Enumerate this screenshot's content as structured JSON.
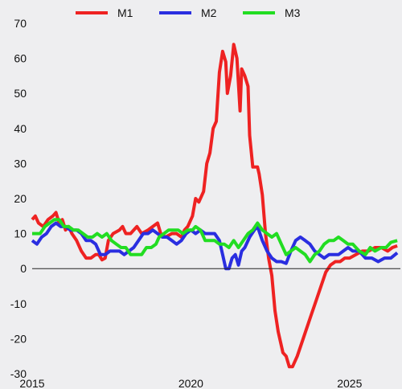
{
  "chart_data": {
    "type": "line",
    "title": "",
    "xlabel": "",
    "ylabel": "",
    "xlim": [
      2015,
      2026.6
    ],
    "ylim": [
      -30,
      70
    ],
    "yticks": [
      "70",
      "60",
      "50",
      "40",
      "30",
      "20",
      "10",
      "0",
      "-10",
      "-20",
      "-30"
    ],
    "xticks": [
      "2015",
      "2020",
      "2025"
    ],
    "zero_line": true,
    "legend_position": "top",
    "series": [
      {
        "name": "M1",
        "color": "#ee2222",
        "points": [
          [
            2015.0,
            14
          ],
          [
            2015.1,
            15
          ],
          [
            2015.2,
            13
          ],
          [
            2015.35,
            12
          ],
          [
            2015.5,
            14
          ],
          [
            2015.65,
            15
          ],
          [
            2015.75,
            16
          ],
          [
            2015.85,
            13
          ],
          [
            2015.95,
            14
          ],
          [
            2016.05,
            11
          ],
          [
            2016.15,
            12
          ],
          [
            2016.25,
            10
          ],
          [
            2016.4,
            8
          ],
          [
            2016.55,
            5
          ],
          [
            2016.7,
            3
          ],
          [
            2016.85,
            3
          ],
          [
            2017.0,
            4
          ],
          [
            2017.1,
            4
          ],
          [
            2017.2,
            2.5
          ],
          [
            2017.3,
            3
          ],
          [
            2017.4,
            8
          ],
          [
            2017.55,
            10
          ],
          [
            2017.75,
            11
          ],
          [
            2017.85,
            12
          ],
          [
            2017.95,
            10
          ],
          [
            2018.1,
            10
          ],
          [
            2018.3,
            12
          ],
          [
            2018.45,
            10
          ],
          [
            2018.65,
            11
          ],
          [
            2018.8,
            12
          ],
          [
            2018.95,
            13
          ],
          [
            2019.05,
            10
          ],
          [
            2019.2,
            9
          ],
          [
            2019.4,
            10
          ],
          [
            2019.55,
            10
          ],
          [
            2019.7,
            9
          ],
          [
            2019.8,
            11
          ],
          [
            2019.9,
            12
          ],
          [
            2020.05,
            15
          ],
          [
            2020.15,
            20
          ],
          [
            2020.25,
            19
          ],
          [
            2020.4,
            22
          ],
          [
            2020.5,
            30
          ],
          [
            2020.6,
            33
          ],
          [
            2020.7,
            40
          ],
          [
            2020.8,
            42
          ],
          [
            2020.9,
            56
          ],
          [
            2021.0,
            62
          ],
          [
            2021.1,
            59
          ],
          [
            2021.15,
            50
          ],
          [
            2021.25,
            55
          ],
          [
            2021.35,
            64
          ],
          [
            2021.45,
            60
          ],
          [
            2021.55,
            45
          ],
          [
            2021.6,
            57
          ],
          [
            2021.7,
            55
          ],
          [
            2021.8,
            52
          ],
          [
            2021.85,
            38
          ],
          [
            2021.95,
            29
          ],
          [
            2022.1,
            29
          ],
          [
            2022.15,
            27
          ],
          [
            2022.25,
            21
          ],
          [
            2022.35,
            10
          ],
          [
            2022.45,
            3
          ],
          [
            2022.55,
            -2
          ],
          [
            2022.65,
            -12
          ],
          [
            2022.75,
            -18
          ],
          [
            2022.9,
            -24
          ],
          [
            2023.0,
            -25
          ],
          [
            2023.1,
            -28
          ],
          [
            2023.2,
            -28
          ],
          [
            2023.35,
            -25
          ],
          [
            2023.5,
            -21
          ],
          [
            2023.65,
            -17
          ],
          [
            2023.8,
            -13
          ],
          [
            2023.95,
            -9
          ],
          [
            2024.1,
            -5
          ],
          [
            2024.25,
            -1
          ],
          [
            2024.4,
            1
          ],
          [
            2024.55,
            2
          ],
          [
            2024.7,
            2
          ],
          [
            2024.85,
            3
          ],
          [
            2025.0,
            3
          ],
          [
            2025.2,
            4
          ],
          [
            2025.4,
            5
          ],
          [
            2025.6,
            5
          ],
          [
            2025.8,
            6
          ],
          [
            2026.0,
            6
          ],
          [
            2026.2,
            5
          ],
          [
            2026.35,
            6
          ],
          [
            2026.5,
            6.5
          ]
        ]
      },
      {
        "name": "M2",
        "color": "#2a2ee0",
        "points": [
          [
            2015.0,
            8
          ],
          [
            2015.15,
            7
          ],
          [
            2015.3,
            9
          ],
          [
            2015.45,
            10
          ],
          [
            2015.6,
            12
          ],
          [
            2015.75,
            13
          ],
          [
            2015.9,
            12
          ],
          [
            2016.05,
            12
          ],
          [
            2016.2,
            11
          ],
          [
            2016.4,
            11
          ],
          [
            2016.55,
            10
          ],
          [
            2016.7,
            8
          ],
          [
            2016.85,
            8
          ],
          [
            2017.0,
            7
          ],
          [
            2017.15,
            4
          ],
          [
            2017.3,
            4
          ],
          [
            2017.45,
            5
          ],
          [
            2017.6,
            5
          ],
          [
            2017.75,
            5
          ],
          [
            2017.9,
            4
          ],
          [
            2018.05,
            5
          ],
          [
            2018.2,
            6
          ],
          [
            2018.35,
            8
          ],
          [
            2018.5,
            10
          ],
          [
            2018.65,
            10
          ],
          [
            2018.8,
            11
          ],
          [
            2018.95,
            10
          ],
          [
            2019.1,
            9
          ],
          [
            2019.25,
            9
          ],
          [
            2019.4,
            8
          ],
          [
            2019.55,
            7
          ],
          [
            2019.7,
            8
          ],
          [
            2019.85,
            10
          ],
          [
            2020.0,
            11
          ],
          [
            2020.15,
            10
          ],
          [
            2020.3,
            11
          ],
          [
            2020.45,
            10
          ],
          [
            2020.6,
            10
          ],
          [
            2020.75,
            10
          ],
          [
            2020.9,
            8
          ],
          [
            2021.0,
            4
          ],
          [
            2021.1,
            0
          ],
          [
            2021.2,
            0
          ],
          [
            2021.3,
            3
          ],
          [
            2021.4,
            4
          ],
          [
            2021.5,
            1
          ],
          [
            2021.6,
            5
          ],
          [
            2021.7,
            6
          ],
          [
            2021.85,
            9
          ],
          [
            2022.0,
            11
          ],
          [
            2022.1,
            12
          ],
          [
            2022.25,
            8
          ],
          [
            2022.4,
            5
          ],
          [
            2022.55,
            3
          ],
          [
            2022.7,
            2
          ],
          [
            2022.85,
            2
          ],
          [
            2023.0,
            1.5
          ],
          [
            2023.15,
            5
          ],
          [
            2023.3,
            8
          ],
          [
            2023.45,
            9
          ],
          [
            2023.6,
            8
          ],
          [
            2023.75,
            7
          ],
          [
            2023.9,
            5
          ],
          [
            2024.05,
            4
          ],
          [
            2024.2,
            3
          ],
          [
            2024.35,
            4
          ],
          [
            2024.5,
            4
          ],
          [
            2024.65,
            4
          ],
          [
            2024.8,
            5
          ],
          [
            2024.95,
            6
          ],
          [
            2025.1,
            5
          ],
          [
            2025.3,
            5
          ],
          [
            2025.5,
            3
          ],
          [
            2025.7,
            3
          ],
          [
            2025.9,
            2
          ],
          [
            2026.1,
            3
          ],
          [
            2026.3,
            3
          ],
          [
            2026.5,
            4.5
          ]
        ]
      },
      {
        "name": "M3",
        "color": "#22dd22",
        "points": [
          [
            2015.0,
            10
          ],
          [
            2015.1,
            10
          ],
          [
            2015.25,
            10
          ],
          [
            2015.4,
            12
          ],
          [
            2015.55,
            13
          ],
          [
            2015.7,
            14
          ],
          [
            2015.85,
            14
          ],
          [
            2016.0,
            12
          ],
          [
            2016.15,
            12
          ],
          [
            2016.3,
            11
          ],
          [
            2016.45,
            11
          ],
          [
            2016.6,
            10
          ],
          [
            2016.75,
            9
          ],
          [
            2016.9,
            9
          ],
          [
            2017.05,
            10
          ],
          [
            2017.2,
            9
          ],
          [
            2017.35,
            10
          ],
          [
            2017.5,
            8
          ],
          [
            2017.65,
            7
          ],
          [
            2017.8,
            6
          ],
          [
            2017.95,
            6
          ],
          [
            2018.1,
            4
          ],
          [
            2018.3,
            4
          ],
          [
            2018.45,
            4
          ],
          [
            2018.6,
            6
          ],
          [
            2018.75,
            6
          ],
          [
            2018.9,
            7
          ],
          [
            2019.0,
            9
          ],
          [
            2019.15,
            10
          ],
          [
            2019.3,
            11
          ],
          [
            2019.45,
            11
          ],
          [
            2019.6,
            11
          ],
          [
            2019.75,
            10
          ],
          [
            2019.9,
            11
          ],
          [
            2020.05,
            11
          ],
          [
            2020.15,
            12
          ],
          [
            2020.3,
            11
          ],
          [
            2020.45,
            8
          ],
          [
            2020.6,
            8
          ],
          [
            2020.75,
            8
          ],
          [
            2020.9,
            7
          ],
          [
            2021.05,
            7
          ],
          [
            2021.2,
            6
          ],
          [
            2021.35,
            8
          ],
          [
            2021.5,
            6
          ],
          [
            2021.65,
            8
          ],
          [
            2021.8,
            10
          ],
          [
            2021.95,
            11
          ],
          [
            2022.1,
            13
          ],
          [
            2022.25,
            11
          ],
          [
            2022.4,
            10
          ],
          [
            2022.55,
            9
          ],
          [
            2022.7,
            10
          ],
          [
            2022.85,
            7
          ],
          [
            2023.0,
            4
          ],
          [
            2023.15,
            5
          ],
          [
            2023.3,
            6
          ],
          [
            2023.45,
            5
          ],
          [
            2023.6,
            4
          ],
          [
            2023.75,
            2
          ],
          [
            2023.9,
            4
          ],
          [
            2024.05,
            5
          ],
          [
            2024.2,
            7
          ],
          [
            2024.35,
            8
          ],
          [
            2024.5,
            8
          ],
          [
            2024.65,
            9
          ],
          [
            2024.8,
            8
          ],
          [
            2024.95,
            7
          ],
          [
            2025.1,
            7
          ],
          [
            2025.3,
            5
          ],
          [
            2025.5,
            4
          ],
          [
            2025.65,
            6
          ],
          [
            2025.8,
            5
          ],
          [
            2026.0,
            6
          ],
          [
            2026.15,
            6
          ],
          [
            2026.3,
            7.5
          ],
          [
            2026.5,
            8
          ]
        ]
      }
    ]
  }
}
